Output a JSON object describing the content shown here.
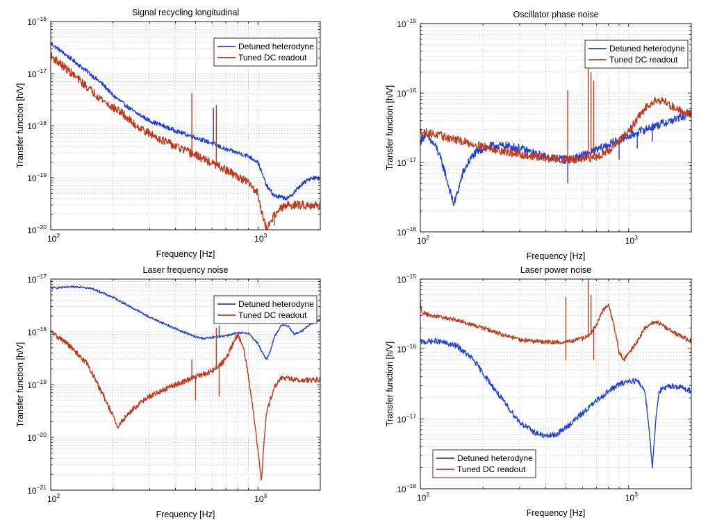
{
  "colors": {
    "blue": "#1f3fe0",
    "red": "#c0391b"
  },
  "chart_data": [
    {
      "type": "line",
      "title": "Signal recycling longitudinal",
      "xlabel": "Frequency [Hz]",
      "ylabel": "Transfer function [h/V]",
      "xscale": "log",
      "yscale": "log",
      "xlim": [
        100,
        2000
      ],
      "ylim": [
        1e-20,
        1e-16
      ],
      "xticks": [
        100,
        1000
      ],
      "yticks": [
        1e-20,
        1e-19,
        1e-18,
        1e-17,
        1e-16
      ],
      "grid": true,
      "legend_loc": "top-right",
      "series": [
        {
          "name": "Detuned heterodyne",
          "color": "blue",
          "x": [
            100,
            120,
            150,
            180,
            200,
            250,
            300,
            400,
            500,
            600,
            700,
            800,
            900,
            1000,
            1100,
            1200,
            1300,
            1400,
            1600,
            1800,
            2000
          ],
          "y": [
            3.8e-17,
            2.2e-17,
            1.1e-17,
            6e-18,
            3.8e-18,
            1.9e-18,
            1.25e-18,
            8e-19,
            5.9e-19,
            4.6e-19,
            3.5e-19,
            3e-19,
            2.6e-19,
            2e-19,
            7e-20,
            4.5e-20,
            4.2e-20,
            4e-20,
            7e-20,
            1e-19,
            1e-19
          ],
          "noise": 0.04,
          "spikes": [
            [
              610,
              2.2e-18
            ]
          ]
        },
        {
          "name": "Tuned DC readout",
          "color": "red",
          "x": [
            100,
            120,
            150,
            180,
            200,
            215,
            230,
            250,
            300,
            400,
            500,
            600,
            700,
            800,
            900,
            1000,
            1050,
            1100,
            1200,
            1300,
            1400,
            1600,
            1800,
            2000
          ],
          "y": [
            2.2e-17,
            1.2e-17,
            5.5e-18,
            3e-18,
            2.2e-18,
            1.9e-18,
            1.5e-18,
            1.1e-18,
            7e-19,
            4e-19,
            2.7e-19,
            1.9e-19,
            1.4e-19,
            1.05e-19,
            8e-20,
            5e-20,
            2e-20,
            1e-20,
            2e-20,
            2.6e-20,
            3e-20,
            3e-20,
            3e-20,
            2.9e-20
          ],
          "noise": 0.08,
          "spikes": [
            [
              480,
              4.2e-18
            ],
            [
              630,
              2.5e-18
            ],
            [
              1200,
              1.2e-20
            ]
          ]
        }
      ]
    },
    {
      "type": "line",
      "title": "Oscillator phase noise",
      "xlabel": "Frequency [Hz]",
      "ylabel": "Transfer function [h/V]",
      "xscale": "log",
      "yscale": "log",
      "xlim": [
        100,
        2000
      ],
      "ylim": [
        1e-18,
        1e-15
      ],
      "xticks": [
        100,
        1000
      ],
      "yticks": [
        1e-18,
        1e-17,
        1e-16,
        1e-15
      ],
      "grid": true,
      "legend_loc": "top-right",
      "series": [
        {
          "name": "Detuned heterodyne",
          "color": "blue",
          "x": [
            100,
            105,
            110,
            120,
            130,
            140,
            145,
            150,
            160,
            170,
            180,
            200,
            230,
            270,
            300,
            350,
            400,
            450,
            500,
            550,
            600,
            700,
            800,
            900,
            1000,
            1200,
            1400,
            1600,
            1800,
            2000
          ],
          "y": [
            2e-17,
            2.5e-17,
            2.2e-17,
            1.6e-17,
            8e-18,
            3.5e-18,
            2.5e-18,
            3.5e-18,
            7e-18,
            1e-17,
            1.3e-17,
            1.6e-17,
            1.75e-17,
            1.7e-17,
            1.6e-17,
            1.35e-17,
            1.2e-17,
            1.15e-17,
            1.1e-17,
            1.15e-17,
            1.25e-17,
            1.5e-17,
            1.8e-17,
            2.1e-17,
            2.4e-17,
            3e-17,
            3.5e-17,
            4e-17,
            4.5e-17,
            5.3e-17
          ],
          "noise": 0.06,
          "spikes": [
            [
              900,
              1.1e-17
            ],
            [
              1100,
              1.6e-17
            ],
            [
              1300,
              2e-17
            ],
            [
              510,
              5e-18
            ]
          ]
        },
        {
          "name": "Tuned DC readout",
          "color": "red",
          "x": [
            100,
            120,
            150,
            200,
            250,
            300,
            400,
            500,
            600,
            700,
            800,
            900,
            1000,
            1100,
            1200,
            1300,
            1400,
            1500,
            1600,
            1800,
            2000
          ],
          "y": [
            2.8e-17,
            2.5e-17,
            2.1e-17,
            1.7e-17,
            1.45e-17,
            1.3e-17,
            1.15e-17,
            1.1e-17,
            1.1e-17,
            1.2e-17,
            1.5e-17,
            2e-17,
            2.8e-17,
            4.2e-17,
            6e-17,
            7.6e-17,
            8e-17,
            7.5e-17,
            6.5e-17,
            5.5e-17,
            5e-17
          ],
          "noise": 0.06,
          "spikes": [
            [
              640,
              3.2e-16
            ],
            [
              660,
              2e-16
            ],
            [
              680,
              1.5e-16
            ],
            [
              510,
              1.1e-16
            ]
          ]
        }
      ]
    },
    {
      "type": "line",
      "title": "Laser frequency noise",
      "xlabel": "Frequency [Hz]",
      "ylabel": "Transfer function [h/V]",
      "xscale": "log",
      "yscale": "log",
      "xlim": [
        100,
        2000
      ],
      "ylim": [
        1e-21,
        1e-17
      ],
      "xticks": [
        100,
        1000
      ],
      "yticks": [
        1e-21,
        1e-20,
        1e-19,
        1e-18,
        1e-17
      ],
      "grid": true,
      "legend_loc": "top-right",
      "series": [
        {
          "name": "Detuned heterodyne",
          "color": "blue",
          "x": [
            100,
            120,
            140,
            160,
            200,
            250,
            300,
            400,
            500,
            550,
            600,
            700,
            800,
            900,
            1000,
            1050,
            1100,
            1150,
            1200,
            1300,
            1400,
            1500,
            1600,
            1800,
            2000
          ],
          "y": [
            6.8e-18,
            7e-18,
            7.2e-18,
            6.5e-18,
            4.5e-18,
            2.8e-18,
            1.9e-18,
            1.15e-18,
            8e-19,
            7.5e-19,
            7.8e-19,
            8.5e-19,
            9.5e-19,
            9.5e-19,
            6e-19,
            4e-19,
            3e-19,
            4.5e-19,
            8e-19,
            1.35e-18,
            1.3e-18,
            9e-19,
            1e-18,
            1.4e-18,
            1.7e-18
          ],
          "noise": 0.02,
          "spikes": [
            [
              650,
              1.3e-18
            ]
          ]
        },
        {
          "name": "Tuned DC readout",
          "color": "red",
          "x": [
            100,
            120,
            150,
            180,
            200,
            210,
            220,
            250,
            300,
            400,
            500,
            600,
            700,
            750,
            800,
            850,
            900,
            950,
            1000,
            1040,
            1060,
            1100,
            1200,
            1300,
            1400,
            1600,
            2000
          ],
          "y": [
            1e-18,
            6e-19,
            2.5e-19,
            6e-20,
            2.5e-20,
            1.5e-20,
            2e-20,
            3.5e-20,
            6e-20,
            1e-19,
            1.4e-19,
            1.8e-19,
            3e-19,
            5.5e-19,
            9e-19,
            5e-19,
            1.5e-19,
            3e-20,
            6e-21,
            1.5e-21,
            5e-21,
            3e-20,
            9e-20,
            1.35e-19,
            1.3e-19,
            1.2e-19,
            1.25e-19
          ],
          "noise": 0.05,
          "spikes": [
            [
              500,
              5e-20
            ],
            [
              650,
              6e-20
            ],
            [
              480,
              3e-19
            ],
            [
              630,
              1.2e-18
            ]
          ]
        }
      ]
    },
    {
      "type": "line",
      "title": "Laser power noise",
      "xlabel": "Frequency [Hz]",
      "ylabel": "Transfer function [h/V]",
      "xscale": "log",
      "yscale": "log",
      "xlim": [
        100,
        2000
      ],
      "ylim": [
        1e-18,
        1e-15
      ],
      "xticks": [
        100,
        1000
      ],
      "yticks": [
        1e-18,
        1e-17,
        1e-16,
        1e-15
      ],
      "grid": true,
      "legend_loc": "bottom-left",
      "series": [
        {
          "name": "Detuned heterodyne",
          "color": "blue",
          "x": [
            100,
            120,
            150,
            180,
            200,
            250,
            300,
            350,
            400,
            450,
            500,
            600,
            700,
            800,
            900,
            1000,
            1100,
            1200,
            1250,
            1300,
            1350,
            1400,
            1600,
            1800,
            2000
          ],
          "y": [
            1.25e-16,
            1.3e-16,
            1.1e-16,
            7e-17,
            4.5e-17,
            1.8e-17,
            9e-18,
            6.5e-18,
            5.6e-18,
            6e-18,
            7.5e-18,
            1.2e-17,
            1.8e-17,
            2.5e-17,
            3.1e-17,
            3.5e-17,
            3.5e-17,
            2.5e-17,
            8e-18,
            2e-18,
            1e-17,
            2.5e-17,
            3e-17,
            2.8e-17,
            2.5e-17
          ],
          "noise": 0.04,
          "spikes": [
            [
              640,
              1.4e-17
            ]
          ]
        },
        {
          "name": "Tuned DC readout",
          "color": "red",
          "x": [
            100,
            102,
            110,
            130,
            150,
            200,
            250,
            300,
            400,
            500,
            600,
            650,
            700,
            750,
            800,
            850,
            900,
            950,
            1000,
            1100,
            1200,
            1300,
            1400,
            1600,
            1800,
            2000
          ],
          "y": [
            4.5e-16,
            3.4e-16,
            3e-16,
            2.8e-16,
            2.6e-16,
            2e-16,
            1.6e-16,
            1.35e-16,
            1.25e-16,
            1.25e-16,
            1.4e-16,
            1.6e-16,
            2.2e-16,
            3.5e-16,
            4.3e-16,
            2.2e-16,
            9e-17,
            7e-17,
            8.5e-17,
            1.3e-16,
            2e-16,
            2.4e-16,
            2.35e-16,
            1.8e-16,
            1.5e-16,
            1.3e-16
          ],
          "noise": 0.03,
          "spikes": [
            [
              500,
              5.5e-16
            ],
            [
              640,
              1e-15
            ],
            [
              660,
              6e-16
            ],
            [
              680,
              7e-17
            ],
            [
              500,
              7e-17
            ]
          ]
        }
      ]
    }
  ]
}
